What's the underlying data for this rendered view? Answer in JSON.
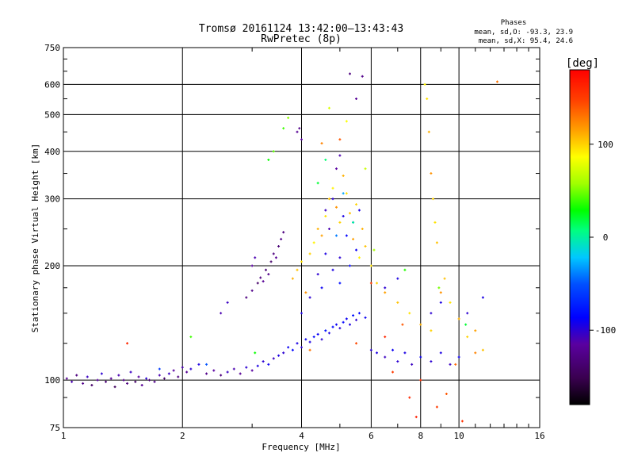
{
  "chart_data": {
    "type": "scatter",
    "title": "Tromsø 20161124 13:42:00–13:43:43",
    "subtitle": "RwPretec (8p)",
    "xlabel": "Frequency [MHz]",
    "ylabel": "Stationary phase Virtual Height [km]",
    "x_scale": "log",
    "y_scale": "log",
    "xlim": [
      1,
      16
    ],
    "ylim": [
      75,
      750
    ],
    "x_ticks": [
      1,
      2,
      4,
      6,
      8,
      10,
      16
    ],
    "x_tick_labels": [
      "1",
      "2",
      "4",
      "6",
      "8",
      "10",
      "16"
    ],
    "y_ticks": [
      75,
      100,
      200,
      300,
      400,
      500,
      600,
      750
    ],
    "y_tick_labels": [
      "75",
      "100",
      "200",
      "300",
      "400",
      "500",
      "600",
      "750"
    ],
    "grid": true,
    "stats": {
      "heading": "Phases",
      "line_o": "mean, sd,O: -93.3, 23.9",
      "line_x": "mean, sd,X:  95.4, 24.6"
    },
    "colorbar": {
      "label": "[deg]",
      "range": [
        -180,
        180
      ],
      "ticks": [
        100,
        0,
        -100
      ],
      "tick_labels": [
        "100",
        "0",
        "-100"
      ]
    },
    "series": [
      {
        "points": [
          [
            1.02,
            101,
            -120
          ],
          [
            1.05,
            99,
            -110
          ],
          [
            1.08,
            103,
            -130
          ],
          [
            1.12,
            98,
            -125
          ],
          [
            1.15,
            102,
            -105
          ],
          [
            1.18,
            97,
            -140
          ],
          [
            1.22,
            100,
            -115
          ],
          [
            1.25,
            104,
            -100
          ],
          [
            1.28,
            99,
            -135
          ],
          [
            1.32,
            101,
            -120
          ],
          [
            1.35,
            96,
            -145
          ],
          [
            1.38,
            103,
            -110
          ],
          [
            1.42,
            100,
            -125
          ],
          [
            1.45,
            98,
            -130
          ],
          [
            1.48,
            105,
            -105
          ],
          [
            1.52,
            99,
            -140
          ],
          [
            1.55,
            102,
            -115
          ],
          [
            1.58,
            97,
            -120
          ],
          [
            1.62,
            101,
            -100
          ],
          [
            1.65,
            100,
            -135
          ],
          [
            1.7,
            99,
            -125
          ],
          [
            1.75,
            103,
            -110
          ],
          [
            1.8,
            101,
            -140
          ],
          [
            1.85,
            104,
            -105
          ],
          [
            1.9,
            106,
            -115
          ],
          [
            1.95,
            102,
            -130
          ],
          [
            2.0,
            108,
            -110
          ],
          [
            2.05,
            105,
            -120
          ],
          [
            2.1,
            107,
            -100
          ],
          [
            2.2,
            110,
            -95
          ],
          [
            2.3,
            104,
            -125
          ],
          [
            2.4,
            106,
            -115
          ],
          [
            2.5,
            103,
            -130
          ],
          [
            2.6,
            105,
            -105
          ],
          [
            2.7,
            107,
            -110
          ],
          [
            2.8,
            104,
            -120
          ],
          [
            2.9,
            108,
            -100
          ],
          [
            3.0,
            106,
            -115
          ],
          [
            3.1,
            109,
            -95
          ],
          [
            3.2,
            112,
            -100
          ],
          [
            3.3,
            110,
            -90
          ],
          [
            3.4,
            114,
            -105
          ],
          [
            3.5,
            116,
            -95
          ],
          [
            3.6,
            118,
            -100
          ],
          [
            3.7,
            122,
            -90
          ],
          [
            3.8,
            120,
            -85
          ],
          [
            3.9,
            125,
            -95
          ],
          [
            4.0,
            122,
            -100
          ],
          [
            4.1,
            128,
            -90
          ],
          [
            4.2,
            126,
            -95
          ],
          [
            4.3,
            130,
            -85
          ],
          [
            4.4,
            132,
            -90
          ],
          [
            4.5,
            128,
            -100
          ],
          [
            4.6,
            135,
            -80
          ],
          [
            4.7,
            133,
            -95
          ],
          [
            4.8,
            138,
            -85
          ],
          [
            4.9,
            140,
            -90
          ],
          [
            5.0,
            137,
            -100
          ],
          [
            5.1,
            142,
            -85
          ],
          [
            5.2,
            145,
            -90
          ],
          [
            5.3,
            140,
            -95
          ],
          [
            5.4,
            148,
            -80
          ],
          [
            5.5,
            144,
            -100
          ],
          [
            5.6,
            150,
            -85
          ],
          [
            5.8,
            146,
            -90
          ],
          [
            2.9,
            165,
            -130
          ],
          [
            3.0,
            172,
            -125
          ],
          [
            3.1,
            180,
            -140
          ],
          [
            3.15,
            186,
            -130
          ],
          [
            3.2,
            182,
            -120
          ],
          [
            3.25,
            195,
            -135
          ],
          [
            3.3,
            190,
            -125
          ],
          [
            3.35,
            205,
            -140
          ],
          [
            3.4,
            215,
            -130
          ],
          [
            3.45,
            210,
            -120
          ],
          [
            3.5,
            225,
            -135
          ],
          [
            3.55,
            235,
            -125
          ],
          [
            3.6,
            245,
            -130
          ],
          [
            2.5,
            150,
            -110
          ],
          [
            2.6,
            160,
            -105
          ],
          [
            3.0,
            200,
            -115
          ],
          [
            3.05,
            210,
            -110
          ],
          [
            4.0,
            150,
            -95
          ],
          [
            4.2,
            165,
            -100
          ],
          [
            4.5,
            175,
            -90
          ],
          [
            4.8,
            195,
            -95
          ],
          [
            5.0,
            210,
            -100
          ],
          [
            5.2,
            240,
            -85
          ],
          [
            5.4,
            260,
            -90
          ],
          [
            5.6,
            280,
            -95
          ],
          [
            5.0,
            180,
            -80
          ],
          [
            5.3,
            200,
            -85
          ],
          [
            5.5,
            220,
            -90
          ],
          [
            4.4,
            190,
            -100
          ],
          [
            4.6,
            215,
            -95
          ],
          [
            6.0,
            120,
            -100
          ],
          [
            6.2,
            118,
            -95
          ],
          [
            6.5,
            115,
            -105
          ],
          [
            6.8,
            120,
            -90
          ],
          [
            7.0,
            112,
            -100
          ],
          [
            7.3,
            118,
            -95
          ],
          [
            7.6,
            110,
            -105
          ],
          [
            8.0,
            115,
            -90
          ],
          [
            8.5,
            112,
            -100
          ],
          [
            9.0,
            118,
            -95
          ],
          [
            9.5,
            110,
            -105
          ],
          [
            10.0,
            115,
            -90
          ],
          [
            6.5,
            175,
            -100
          ],
          [
            7.0,
            185,
            -95
          ],
          [
            8.5,
            150,
            -100
          ],
          [
            9.0,
            160,
            -95
          ],
          [
            10.5,
            150,
            -100
          ],
          [
            11.5,
            165,
            -95
          ],
          [
            5.0,
            390,
            -110
          ],
          [
            4.9,
            360,
            -115
          ],
          [
            5.5,
            550,
            -120
          ],
          [
            5.7,
            630,
            -125
          ],
          [
            5.3,
            640,
            -130
          ],
          [
            3.9,
            450,
            -120
          ],
          [
            4.0,
            430,
            -115
          ],
          [
            3.95,
            460,
            -125
          ],
          [
            4.6,
            280,
            -105
          ],
          [
            4.7,
            250,
            -110
          ],
          [
            4.8,
            300,
            -100
          ],
          [
            5.1,
            270,
            -95
          ]
        ]
      },
      {
        "points": [
          [
            3.8,
            185,
            110
          ],
          [
            3.9,
            195,
            105
          ],
          [
            4.0,
            205,
            95
          ],
          [
            4.1,
            170,
            120
          ],
          [
            4.2,
            215,
            100
          ],
          [
            4.3,
            230,
            90
          ],
          [
            4.4,
            250,
            110
          ],
          [
            4.5,
            240,
            115
          ],
          [
            4.6,
            270,
            95
          ],
          [
            4.7,
            300,
            105
          ],
          [
            4.8,
            320,
            90
          ],
          [
            4.9,
            285,
            120
          ],
          [
            5.0,
            260,
            100
          ],
          [
            5.1,
            345,
            110
          ],
          [
            5.2,
            310,
            95
          ],
          [
            5.3,
            275,
            105
          ],
          [
            5.4,
            235,
            115
          ],
          [
            5.5,
            290,
            100
          ],
          [
            5.6,
            210,
            90
          ],
          [
            5.7,
            250,
            110
          ],
          [
            5.8,
            225,
            105
          ],
          [
            6.0,
            200,
            95
          ],
          [
            6.2,
            180,
            100
          ],
          [
            6.5,
            170,
            115
          ],
          [
            7.0,
            160,
            105
          ],
          [
            7.5,
            150,
            95
          ],
          [
            8.0,
            140,
            110
          ],
          [
            8.5,
            135,
            100
          ],
          [
            9.0,
            170,
            120
          ],
          [
            9.2,
            185,
            105
          ],
          [
            9.5,
            160,
            95
          ],
          [
            10.0,
            145,
            110
          ],
          [
            10.5,
            130,
            100
          ],
          [
            11.0,
            135,
            115
          ],
          [
            11.5,
            120,
            105
          ],
          [
            8.2,
            600,
            90
          ],
          [
            8.3,
            550,
            95
          ],
          [
            8.4,
            450,
            110
          ],
          [
            8.5,
            350,
            120
          ],
          [
            8.6,
            300,
            100
          ],
          [
            8.7,
            260,
            95
          ],
          [
            8.8,
            230,
            105
          ],
          [
            5.2,
            480,
            85
          ],
          [
            4.7,
            520,
            75
          ],
          [
            3.6,
            460,
            40
          ],
          [
            3.7,
            490,
            55
          ],
          [
            3.3,
            380,
            30
          ],
          [
            3.4,
            400,
            45
          ],
          [
            12.5,
            610,
            130
          ],
          [
            4.5,
            420,
            125
          ],
          [
            5.0,
            430,
            140
          ],
          [
            6.0,
            180,
            150
          ],
          [
            6.5,
            130,
            160
          ],
          [
            7.2,
            140,
            140
          ],
          [
            9.8,
            110,
            135
          ],
          [
            4.2,
            120,
            130
          ],
          [
            5.5,
            125,
            145
          ],
          [
            6.8,
            105,
            150
          ],
          [
            8.0,
            100,
            155
          ],
          [
            7.5,
            90,
            160
          ],
          [
            7.8,
            80,
            165
          ],
          [
            8.8,
            85,
            150
          ],
          [
            9.3,
            92,
            140
          ],
          [
            10.2,
            78,
            155
          ],
          [
            11.0,
            118,
            125
          ],
          [
            5.8,
            360,
            70
          ],
          [
            4.4,
            330,
            20
          ],
          [
            4.6,
            380,
            10
          ],
          [
            5.1,
            310,
            -30
          ],
          [
            5.4,
            260,
            0
          ],
          [
            4.9,
            240,
            -40
          ],
          [
            6.1,
            220,
            60
          ],
          [
            7.3,
            195,
            35
          ],
          [
            8.9,
            175,
            50
          ],
          [
            10.4,
            140,
            20
          ],
          [
            2.3,
            110,
            -50
          ],
          [
            1.45,
            125,
            160
          ],
          [
            2.1,
            130,
            40
          ],
          [
            3.05,
            118,
            30
          ],
          [
            1.75,
            107,
            -60
          ]
        ]
      }
    ]
  }
}
